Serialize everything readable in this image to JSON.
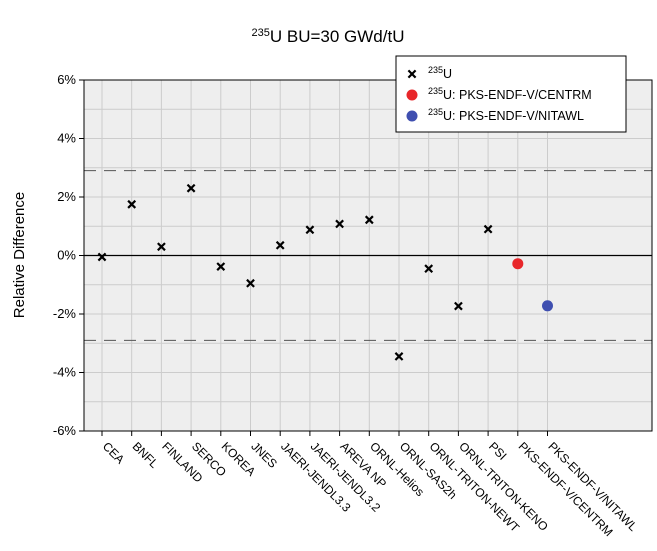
{
  "chart_data": {
    "type": "scatter",
    "title": {
      "sup": "235",
      "main": "U BU=30 GWd/tU"
    },
    "ylabel": "Relative Difference",
    "xlabel": "",
    "ylim": [
      -6,
      6
    ],
    "y_ticks": [
      {
        "value": 6,
        "label": "6%"
      },
      {
        "value": 4,
        "label": "4%"
      },
      {
        "value": 2,
        "label": "2%"
      },
      {
        "value": 0,
        "label": "0%"
      },
      {
        "value": -2,
        "label": "-2%"
      },
      {
        "value": -4,
        "label": "-4%"
      },
      {
        "value": -6,
        "label": "-6%"
      }
    ],
    "reference_lines": [
      {
        "value": 2.9,
        "style": "dashed"
      },
      {
        "value": 0,
        "style": "solid"
      },
      {
        "value": -2.9,
        "style": "dashed"
      }
    ],
    "grid": true,
    "legend_position": "top-right",
    "categories": [
      "CEA",
      "BNFL",
      "FINLAND",
      "SERCO",
      "KOREA",
      "JNES",
      "JAERI-JENDL3.3",
      "JAERI-JENDL3.2",
      "AREVA NP",
      "ORNL-Helios",
      "ORNL-SAS2h",
      "ORNL-TRITON-NEWT",
      "ORNL-TRITON-KENO",
      "PSI",
      "PKS-ENDF-V/CENTRM",
      "PKS-ENDF-V/NITAWL"
    ],
    "series": [
      {
        "sup": "235",
        "name": "U",
        "marker": "x",
        "color": "#000000",
        "points": [
          {
            "x": "CEA",
            "y": -0.05
          },
          {
            "x": "BNFL",
            "y": 1.75
          },
          {
            "x": "FINLAND",
            "y": 0.3
          },
          {
            "x": "SERCO",
            "y": 2.3
          },
          {
            "x": "KOREA",
            "y": -0.38
          },
          {
            "x": "JNES",
            "y": -0.95
          },
          {
            "x": "JAERI-JENDL3.3",
            "y": 0.35
          },
          {
            "x": "JAERI-JENDL3.2",
            "y": 0.88
          },
          {
            "x": "AREVA NP",
            "y": 1.08
          },
          {
            "x": "ORNL-Helios",
            "y": 1.22
          },
          {
            "x": "ORNL-SAS2h",
            "y": -3.45
          },
          {
            "x": "ORNL-TRITON-NEWT",
            "y": -0.45
          },
          {
            "x": "ORNL-TRITON-KENO",
            "y": -1.73
          },
          {
            "x": "PSI",
            "y": 0.9
          }
        ]
      },
      {
        "sup": "235",
        "name": "U: PKS-ENDF-V/CENTRM",
        "marker": "circle",
        "color": "#e8262a",
        "points": [
          {
            "x": "PKS-ENDF-V/CENTRM",
            "y": -0.28
          }
        ]
      },
      {
        "sup": "235",
        "name": "U: PKS-ENDF-V/NITAWL",
        "marker": "circle",
        "color": "#3f4fb0",
        "points": [
          {
            "x": "PKS-ENDF-V/NITAWL",
            "y": -1.72
          }
        ]
      }
    ],
    "colors": {
      "plot_background": "#eeeeee",
      "gridline": "#cccccc",
      "frame": "#000000"
    }
  }
}
